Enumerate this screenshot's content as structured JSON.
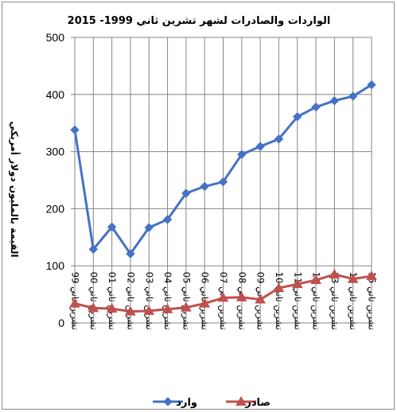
{
  "chart_data": {
    "type": "line",
    "title": "الواردات والصادرات لشهر تشرين ثاني  1999- 2015",
    "ylabel": "القيمة بالمليون دولار أمريكي",
    "xlabel": "",
    "ylim": [
      0,
      500
    ],
    "yticks": [
      0,
      100,
      200,
      300,
      400,
      500
    ],
    "grid": true,
    "legend_position": "bottom",
    "categories": [
      "تشرين ثاني 99",
      "تشرين ثاني 00",
      "تشرين ثاني 01",
      "تشرين ثاني 02",
      "تشرين ثاني 03",
      "تشرين ثاني 04",
      "تشرين ثاني 05",
      "تشرين ثاني 06",
      "تشرين ثاني 07",
      "تشرين ثاني 08",
      "تشرين ثاني 09",
      "تشرين ثاني 10",
      "تشرين ثاني 11",
      "تشرين ثاني 12",
      "تشرين ثاني 13",
      "تشرين ثاني 14",
      "تشرين ثاني 15"
    ],
    "series": [
      {
        "name": "وارد",
        "color": "#4472c4",
        "marker": "diamond",
        "values": [
          338,
          129,
          168,
          121,
          167,
          181,
          227,
          239,
          247,
          295,
          309,
          322,
          361,
          378,
          389,
          397,
          417
        ]
      },
      {
        "name": "صادر",
        "color": "#c0504d",
        "marker": "triangle",
        "values": [
          34,
          26,
          25,
          20,
          21,
          24,
          27,
          34,
          44,
          45,
          41,
          61,
          68,
          75,
          85,
          77,
          82
        ]
      }
    ]
  }
}
